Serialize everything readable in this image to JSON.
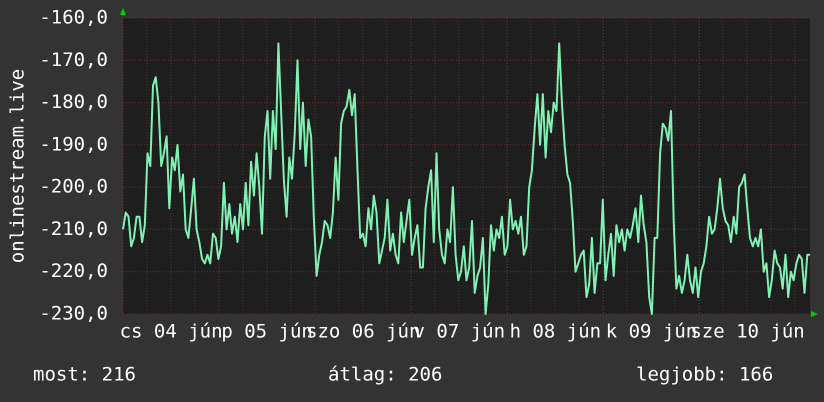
{
  "chart_data": {
    "type": "line",
    "ylabel": "onlinestream.live",
    "ylim": [
      -230,
      -160
    ],
    "yticks": [
      {
        "value": -160,
        "label": "-160,0"
      },
      {
        "value": -170,
        "label": "-170,0"
      },
      {
        "value": -180,
        "label": "-180,0"
      },
      {
        "value": -190,
        "label": "-190,0"
      },
      {
        "value": -200,
        "label": "-200,0"
      },
      {
        "value": -210,
        "label": "-210,0"
      },
      {
        "value": -220,
        "label": "-220,0"
      },
      {
        "value": -230,
        "label": "-230,0"
      }
    ],
    "xlim": [
      0,
      7.15
    ],
    "xticks": [
      {
        "value": 0.5,
        "label": "cs 04 jún"
      },
      {
        "value": 1.5,
        "label": "p 05 jún"
      },
      {
        "value": 2.5,
        "label": "szo 06 jún"
      },
      {
        "value": 3.5,
        "label": "v 07 jún"
      },
      {
        "value": 4.5,
        "label": "h 08 jún"
      },
      {
        "value": 5.5,
        "label": "k 09 jún"
      },
      {
        "value": 6.5,
        "label": "sze 10 jún"
      }
    ],
    "grid": true,
    "series": [
      {
        "color": "#80f0b4",
        "values": [
          -210,
          -206,
          -207,
          -214,
          -212,
          -207,
          -207,
          -213,
          -209,
          -192,
          -195,
          -176,
          -174,
          -180,
          -195,
          -192,
          -188,
          -205,
          -193,
          -196,
          -190,
          -201,
          -197,
          -210,
          -212,
          -205,
          -198,
          -210,
          -213,
          -217,
          -218,
          -216,
          -218,
          -211,
          -212,
          -217,
          -214,
          -199,
          -210,
          -204,
          -211,
          -207,
          -213,
          -204,
          -210,
          -199,
          -209,
          -194,
          -202,
          -192,
          -200,
          -211,
          -188,
          -182,
          -198,
          -182,
          -191,
          -166,
          -182,
          -198,
          -207,
          -193,
          -198,
          -187,
          -170,
          -191,
          -180,
          -195,
          -184,
          -188,
          -207,
          -221,
          -216,
          -213,
          -208,
          -209,
          -212,
          -206,
          -193,
          -203,
          -185,
          -182,
          -181,
          -177,
          -183,
          -178,
          -196,
          -212,
          -211,
          -214,
          -205,
          -210,
          -202,
          -206,
          -218,
          -215,
          -212,
          -203,
          -215,
          -211,
          -216,
          -218,
          -206,
          -213,
          -208,
          -203,
          -216,
          -212,
          -209,
          -219,
          -219,
          -205,
          -200,
          -196,
          -213,
          -192,
          -210,
          -216,
          -218,
          -210,
          -213,
          -200,
          -216,
          -222,
          -220,
          -214,
          -222,
          -219,
          -208,
          -225,
          -221,
          -219,
          -212,
          -230,
          -223,
          -209,
          -215,
          -210,
          -212,
          -207,
          -216,
          -214,
          -203,
          -210,
          -208,
          -211,
          -207,
          -216,
          -214,
          -200,
          -196,
          -186,
          -178,
          -190,
          -178,
          -193,
          -182,
          -187,
          -180,
          -182,
          -166,
          -180,
          -190,
          -197,
          -199,
          -208,
          -220,
          -218,
          -216,
          -215,
          -226,
          -223,
          -212,
          -225,
          -218,
          -218,
          -203,
          -222,
          -216,
          -211,
          -221,
          -209,
          -213,
          -210,
          -215,
          -210,
          -212,
          -209,
          -205,
          -213,
          -202,
          -209,
          -213,
          -226,
          -230,
          -212,
          -212,
          -192,
          -185,
          -186,
          -189,
          -182,
          -208,
          -224,
          -221,
          -225,
          -222,
          -216,
          -222,
          -225,
          -219,
          -226,
          -220,
          -218,
          -214,
          -207,
          -211,
          -210,
          -205,
          -198,
          -205,
          -208,
          -209,
          -213,
          -207,
          -211,
          -200,
          -199,
          -197,
          -205,
          -212,
          -214,
          -212,
          -214,
          -210,
          -220,
          -218,
          -226,
          -222,
          -215,
          -218,
          -219,
          -224,
          -216,
          -226,
          -220,
          -222,
          -218,
          -216,
          -217,
          -225,
          -216,
          -216
        ]
      }
    ],
    "stats": [
      "most: 216",
      "átlag: 206",
      "legjobb: 166"
    ]
  }
}
